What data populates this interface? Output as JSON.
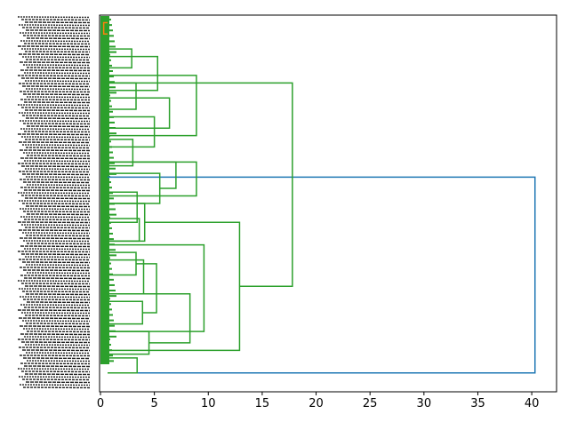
{
  "chart_data": {
    "type": "dendrogram",
    "orientation": "left",
    "title": "",
    "xlabel": "",
    "ylabel": "",
    "xlim": [
      0,
      42.3
    ],
    "xticks": [
      0,
      5,
      10,
      15,
      20,
      25,
      30,
      35,
      40
    ],
    "xtick_labels": [
      "0",
      "5",
      "10",
      "15",
      "20",
      "25",
      "30",
      "35",
      "40"
    ],
    "leaf_labels_legible": false,
    "colors": {
      "cluster_main": "#2ca02c",
      "cluster_small": "#ff7f0e",
      "above_threshold": "#1f77b4",
      "axis": "#000000"
    },
    "merges": [
      {
        "left": 0.95,
        "right": 0.43,
        "height": 40.3,
        "color": "#1f77b4"
      },
      {
        "left": 0.72,
        "right": 0.18,
        "height": 17.8,
        "color": "#2ca02c"
      },
      {
        "left": 0.89,
        "right": 0.55,
        "height": 12.9,
        "color": "#2ca02c"
      },
      {
        "left": 0.84,
        "right": 0.61,
        "height": 9.6,
        "color": "#2ca02c"
      },
      {
        "left": 0.87,
        "right": 0.74,
        "height": 8.3,
        "color": "#2ca02c"
      },
      {
        "left": 0.48,
        "right": 0.39,
        "height": 8.9,
        "color": "#2ca02c"
      },
      {
        "left": 0.46,
        "right": 0.39,
        "height": 7.0,
        "color": "#2ca02c"
      },
      {
        "left": 0.32,
        "right": 0.16,
        "height": 8.9,
        "color": "#2ca02c"
      },
      {
        "left": 0.3,
        "right": 0.22,
        "height": 6.4,
        "color": "#2ca02c"
      },
      {
        "left": 0.2,
        "right": 0.11,
        "height": 5.3,
        "color": "#2ca02c"
      },
      {
        "left": 0.79,
        "right": 0.66,
        "height": 5.2,
        "color": "#2ca02c"
      },
      {
        "left": 0.5,
        "right": 0.42,
        "height": 5.5,
        "color": "#2ca02c"
      },
      {
        "left": 0.35,
        "right": 0.27,
        "height": 5.0,
        "color": "#2ca02c"
      },
      {
        "left": 0.9,
        "right": 0.84,
        "height": 4.5,
        "color": "#2ca02c"
      },
      {
        "left": 0.74,
        "right": 0.65,
        "height": 4.0,
        "color": "#2ca02c"
      },
      {
        "left": 0.6,
        "right": 0.5,
        "height": 4.1,
        "color": "#2ca02c"
      },
      {
        "left": 0.55,
        "right": 0.47,
        "height": 3.4,
        "color": "#2ca02c"
      },
      {
        "left": 0.6,
        "right": 0.54,
        "height": 3.6,
        "color": "#2ca02c"
      },
      {
        "left": 0.25,
        "right": 0.18,
        "height": 3.3,
        "color": "#2ca02c"
      },
      {
        "left": 0.14,
        "right": 0.09,
        "height": 2.9,
        "color": "#2ca02c"
      },
      {
        "left": 0.95,
        "right": 0.91,
        "height": 3.4,
        "color": "#2ca02c"
      },
      {
        "left": 0.82,
        "right": 0.76,
        "height": 3.9,
        "color": "#2ca02c"
      },
      {
        "left": 0.69,
        "right": 0.63,
        "height": 3.3,
        "color": "#2ca02c"
      },
      {
        "left": 0.4,
        "right": 0.33,
        "height": 3.0,
        "color": "#2ca02c"
      },
      {
        "left": 0.05,
        "right": 0.02,
        "height": 0.3,
        "color": "#ff7f0e"
      }
    ]
  }
}
